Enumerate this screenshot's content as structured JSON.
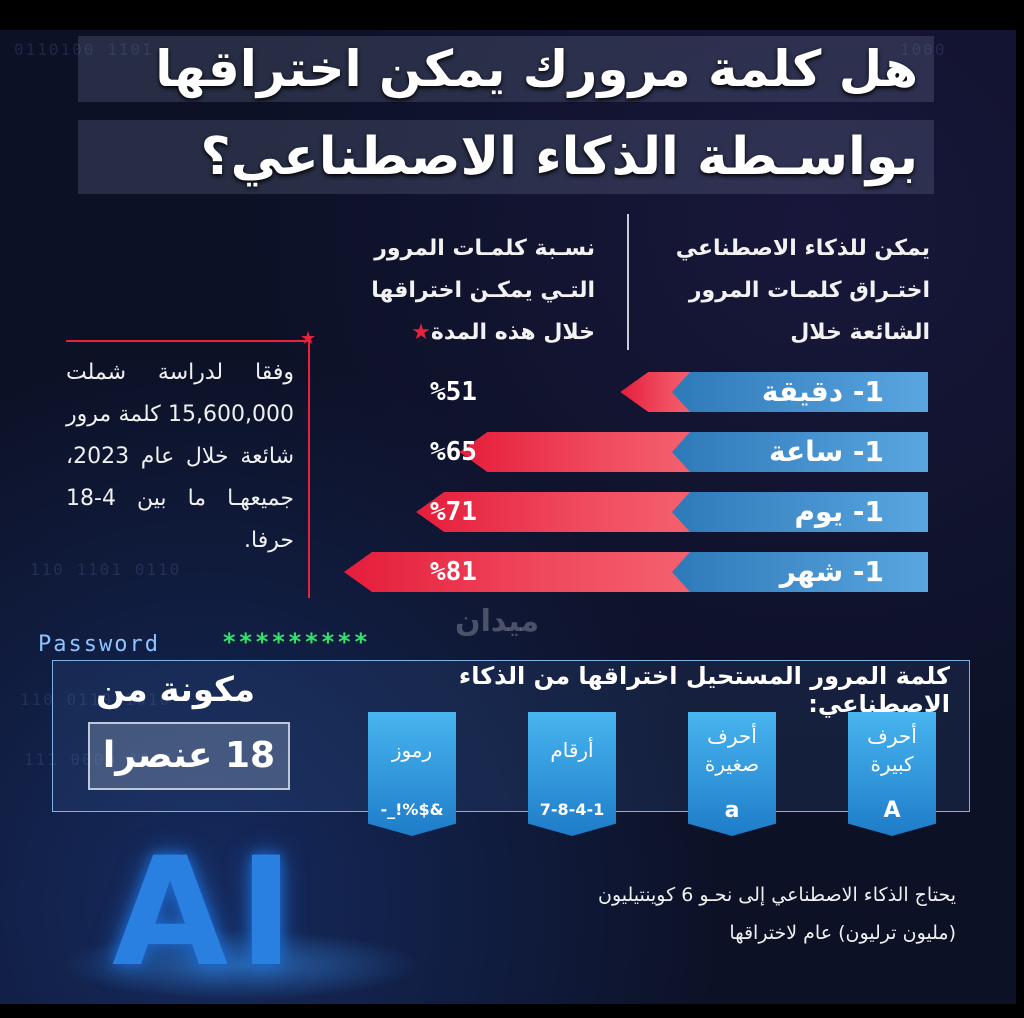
{
  "title": {
    "line1": "هل كلمة مرورك يمكن اختراقها",
    "line2": "بواسـطة الذكاء الاصطناعي؟"
  },
  "headers": {
    "right": "يمكن للذكاء الاصطناعي اختـراق كلمـات المرور الشائعة خلال",
    "left": "نسـبة كلمـات المرور التـي يمكـن اختراقها خلال هذه المدة",
    "left_star": "★"
  },
  "study_note": "وفقا لدراسة شملت 15,600,000 كلمة مرور شائعة خلال عام 2023، جميعهـا ما بين 4-18 حرفا.",
  "bars": [
    {
      "label": "1- دقيقة",
      "percent_text": "%51",
      "value": 51
    },
    {
      "label": "1- ساعة",
      "percent_text": "%65",
      "value": 65
    },
    {
      "label": "1- يوم",
      "percent_text": "%71",
      "value": 71
    },
    {
      "label": "1- شهر",
      "percent_text": "%81",
      "value": 81
    }
  ],
  "watermark": "ميدان",
  "password_field": {
    "label": "Password",
    "masked": "*********"
  },
  "impossible_password": {
    "title": "كلمة المرور المستحيل اختراقها من الذكاء الاصطناعي:",
    "composed_of": "مكونة من",
    "count": "18 عنصرا",
    "cards": [
      {
        "label": "أحرف كبيرة",
        "example": "A"
      },
      {
        "label": "أحرف صغيرة",
        "example": "a"
      },
      {
        "label": "أرقام",
        "example": "7-8-4-1"
      },
      {
        "label": "رموز",
        "example": "-_!%$&"
      }
    ]
  },
  "ai_logo": "AI",
  "footer_note": "يحتاج الذكاء الاصطناعي إلى نحـو 6 كوينتيليون (مليون ترليون) عام لاختراقها",
  "colors": {
    "background": "#0c1126",
    "accent_red": "#e51d3b",
    "accent_blue": "#2e79b8",
    "password_green": "#35e06b"
  }
}
